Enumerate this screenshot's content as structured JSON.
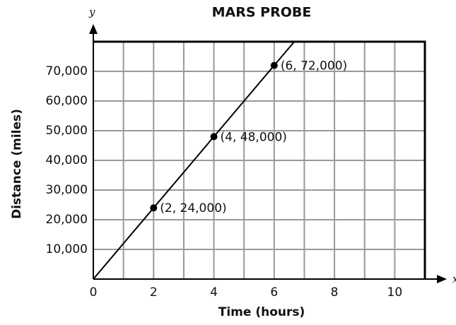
{
  "chart_data": {
    "type": "line",
    "title": "MARS PROBE",
    "xlabel": "Time (hours)",
    "ylabel": "Distance (miles)",
    "x_axis_name": "x",
    "y_axis_name": "y",
    "x": [
      0,
      2,
      4,
      6
    ],
    "series": [
      {
        "color": "#000000",
        "values": [
          0,
          24000,
          48000,
          72000
        ],
        "value_labels": [
          null,
          "(2, 24,000)",
          "(4, 48,000)",
          "(6, 72,000)"
        ]
      }
    ],
    "xlim": [
      0,
      11
    ],
    "ylim": [
      0,
      80000
    ],
    "xticks": [
      0,
      2,
      4,
      6,
      8,
      10
    ],
    "xgrid": [
      1,
      2,
      3,
      4,
      5,
      6,
      7,
      8,
      9,
      10
    ],
    "yticks": [
      {
        "value": 10000,
        "label": "10,000"
      },
      {
        "value": 20000,
        "label": "20,000"
      },
      {
        "value": 30000,
        "label": "30,000"
      },
      {
        "value": 40000,
        "label": "40,000"
      },
      {
        "value": 50000,
        "label": "50,000"
      },
      {
        "value": 60000,
        "label": "60,000"
      },
      {
        "value": 70000,
        "label": "70,000"
      }
    ],
    "grid": true
  }
}
